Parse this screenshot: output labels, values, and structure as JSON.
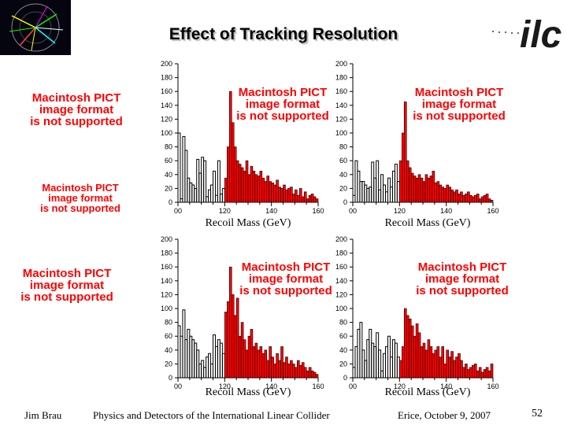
{
  "slide": {
    "title": "Effect of Tracking Resolution",
    "pict_line1": "Macintosh PICT",
    "pict_line2": "image format",
    "pict_line3": "is not supported",
    "footer": {
      "author": "Jim Brau",
      "talk_title": "Physics and Detectors of the International Linear Collider",
      "venue_date": "Erice, October 9, 2007",
      "page_number": "52"
    },
    "logo_text": "ilc"
  },
  "colors": {
    "hist_fill": "#ff0000",
    "hist_outline": "#000000",
    "warning_text": "#ff0000"
  },
  "chart_data": [
    {
      "type": "bar",
      "xlabel": "Recoil Mass (GeV)",
      "ylim": [
        0,
        200
      ],
      "xlim": [
        100,
        160
      ],
      "yticks": [
        "0",
        "20",
        "40",
        "60",
        "80",
        "100",
        "120",
        "140",
        "160",
        "180",
        "200"
      ],
      "xticks": [
        "00",
        "120",
        "140",
        "160"
      ],
      "bin_width": 1,
      "values": [
        100,
        5,
        95,
        75,
        35,
        28,
        25,
        20,
        62,
        42,
        65,
        60,
        8,
        18,
        25,
        45,
        10,
        60,
        12,
        20,
        35,
        80,
        160,
        115,
        80,
        60,
        55,
        50,
        45,
        60,
        40,
        52,
        45,
        40,
        38,
        45,
        35,
        30,
        38,
        30,
        28,
        25,
        32,
        22,
        20,
        25,
        18,
        20,
        22,
        12,
        18,
        10,
        20,
        8,
        15,
        5,
        10,
        12,
        8,
        5
      ]
    },
    {
      "type": "bar",
      "xlabel": "Recoil Mass (GeV)",
      "ylim": [
        0,
        200
      ],
      "xlim": [
        100,
        160
      ],
      "yticks": [
        "0",
        "20",
        "40",
        "60",
        "80",
        "100",
        "120",
        "140",
        "160",
        "180",
        "200"
      ],
      "xticks": [
        "00",
        "120",
        "140",
        "160"
      ],
      "bin_width": 1,
      "values": [
        10,
        60,
        45,
        30,
        30,
        25,
        20,
        22,
        58,
        35,
        60,
        18,
        40,
        25,
        15,
        35,
        22,
        45,
        55,
        30,
        60,
        100,
        145,
        60,
        50,
        42,
        38,
        35,
        40,
        35,
        30,
        40,
        35,
        38,
        45,
        28,
        30,
        25,
        22,
        20,
        25,
        22,
        18,
        15,
        18,
        12,
        15,
        10,
        12,
        15,
        10,
        8,
        10,
        12,
        5,
        8,
        10,
        12,
        5,
        3
      ]
    },
    {
      "type": "bar",
      "xlabel": "Recoil Mass (GeV)",
      "ylim": [
        0,
        200
      ],
      "xlim": [
        100,
        160
      ],
      "yticks": [
        "0",
        "20",
        "40",
        "60",
        "80",
        "100",
        "120",
        "140",
        "160",
        "180",
        "200"
      ],
      "xticks": [
        "00",
        "120",
        "140",
        "160"
      ],
      "bin_width": 1,
      "values": [
        75,
        60,
        98,
        55,
        70,
        60,
        55,
        50,
        40,
        20,
        25,
        15,
        30,
        35,
        20,
        62,
        45,
        55,
        50,
        35,
        95,
        110,
        160,
        120,
        90,
        115,
        60,
        80,
        55,
        40,
        60,
        70,
        45,
        50,
        40,
        45,
        35,
        40,
        25,
        45,
        30,
        20,
        35,
        25,
        45,
        22,
        30,
        20,
        25,
        20,
        15,
        25,
        18,
        22,
        15,
        10,
        15,
        10,
        8,
        5
      ]
    },
    {
      "type": "bar",
      "xlabel": "Recoil Mass (GeV)",
      "ylim": [
        0,
        200
      ],
      "xlim": [
        100,
        160
      ],
      "yticks": [
        "0",
        "20",
        "40",
        "60",
        "80",
        "100",
        "120",
        "140",
        "160",
        "180",
        "200"
      ],
      "xticks": [
        "00",
        "120",
        "140",
        "160"
      ],
      "bin_width": 1,
      "values": [
        15,
        45,
        70,
        80,
        40,
        25,
        55,
        70,
        50,
        45,
        65,
        40,
        10,
        35,
        45,
        60,
        30,
        55,
        50,
        30,
        25,
        45,
        100,
        90,
        85,
        75,
        60,
        78,
        65,
        45,
        50,
        40,
        55,
        45,
        35,
        40,
        45,
        30,
        45,
        20,
        40,
        30,
        38,
        25,
        30,
        35,
        25,
        15,
        20,
        12,
        15,
        18,
        20,
        10,
        15,
        8,
        12,
        15,
        10,
        20
      ]
    }
  ]
}
